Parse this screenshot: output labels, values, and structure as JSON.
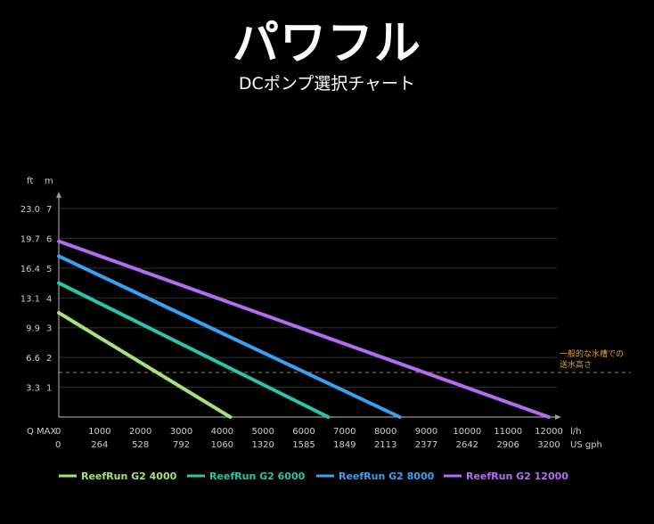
{
  "header": {
    "title": "パワフル",
    "subtitle": "DCポンプ選択チャート"
  },
  "chart_data": {
    "type": "line",
    "unit_labels": {
      "ft": "ft",
      "m": "m",
      "lh": "l/h",
      "gph": "US gph",
      "qmax": "Q MAX"
    },
    "y_ticks_m": [
      0,
      1,
      2,
      3,
      4,
      5,
      6,
      7
    ],
    "y_ticks_ft": [
      "",
      "3.3",
      "6.6",
      "9.9",
      "13.1",
      "16.4",
      "19.7",
      "23.0"
    ],
    "ylim": [
      0,
      7
    ],
    "x_ticks_lh": [
      "0",
      "1000",
      "2000",
      "3000",
      "4000",
      "5000",
      "6000",
      "7000",
      "8000",
      "9000",
      "10000",
      "11000",
      "12000"
    ],
    "x_ticks_gph": [
      "0",
      "264",
      "528",
      "792",
      "1060",
      "1320",
      "1585",
      "1849",
      "2113",
      "2377",
      "2642",
      "2906",
      "3200"
    ],
    "xlim": [
      0,
      12000
    ],
    "reference_line": {
      "value_m": 1.5,
      "label_line1": "一般的な水槽での",
      "label_line2": "送水高さ",
      "color": "#e0a030"
    },
    "series": [
      {
        "name": "ReefRun G2 4000",
        "color": "#a6e27a",
        "points": [
          [
            0,
            3.5
          ],
          [
            4200,
            0
          ]
        ]
      },
      {
        "name": "ReefRun G2 6000",
        "color": "#2ec4a8",
        "points": [
          [
            0,
            4.5
          ],
          [
            6600,
            0
          ]
        ]
      },
      {
        "name": "ReefRun G2 8000",
        "color": "#3aa0f0",
        "points": [
          [
            0,
            5.4
          ],
          [
            8350,
            0
          ]
        ]
      },
      {
        "name": "ReefRun G2 12000",
        "color": "#b26df0",
        "points": [
          [
            0,
            5.9
          ],
          [
            12000,
            0
          ]
        ]
      }
    ]
  }
}
